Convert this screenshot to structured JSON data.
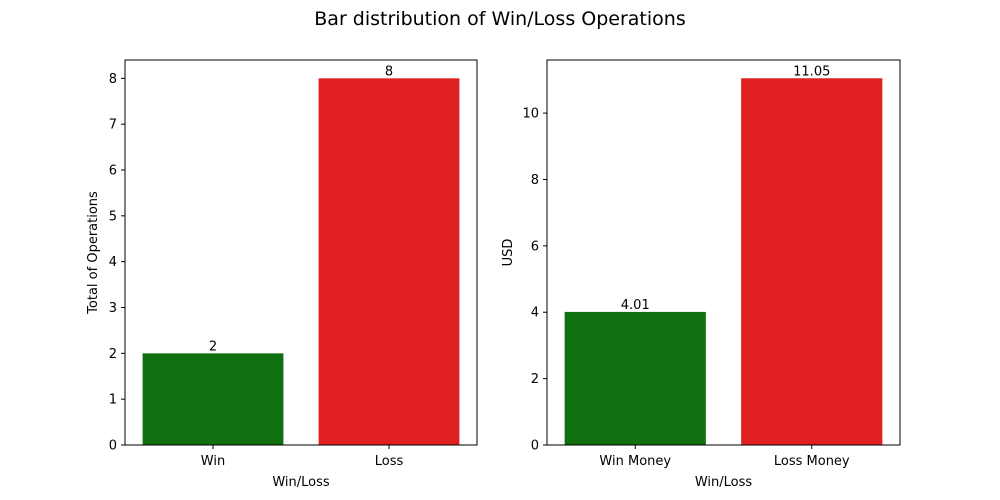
{
  "title": "Bar distribution of Win/Loss Operations",
  "colors": {
    "win": "#107010",
    "loss": "#e02020"
  },
  "chart_data": [
    {
      "type": "bar",
      "categories": [
        "Win",
        "Loss"
      ],
      "values": [
        2,
        8
      ],
      "data_labels": [
        "2",
        "8"
      ],
      "colors": [
        "#107010",
        "#e02020"
      ],
      "xlabel": "Win/Loss",
      "ylabel": "Total of Operations",
      "ylim": [
        0,
        8.4
      ],
      "yticks": [
        0,
        1,
        2,
        3,
        4,
        5,
        6,
        7,
        8
      ],
      "grid": false
    },
    {
      "type": "bar",
      "categories": [
        "Win Money",
        "Loss Money"
      ],
      "values": [
        4.01,
        11.05
      ],
      "data_labels": [
        "4.01",
        "11.05"
      ],
      "colors": [
        "#107010",
        "#e02020"
      ],
      "xlabel": "Win/Loss",
      "ylabel": "USD",
      "ylim": [
        0,
        11.6
      ],
      "yticks": [
        0,
        2,
        4,
        6,
        8,
        10
      ],
      "grid": false
    }
  ]
}
